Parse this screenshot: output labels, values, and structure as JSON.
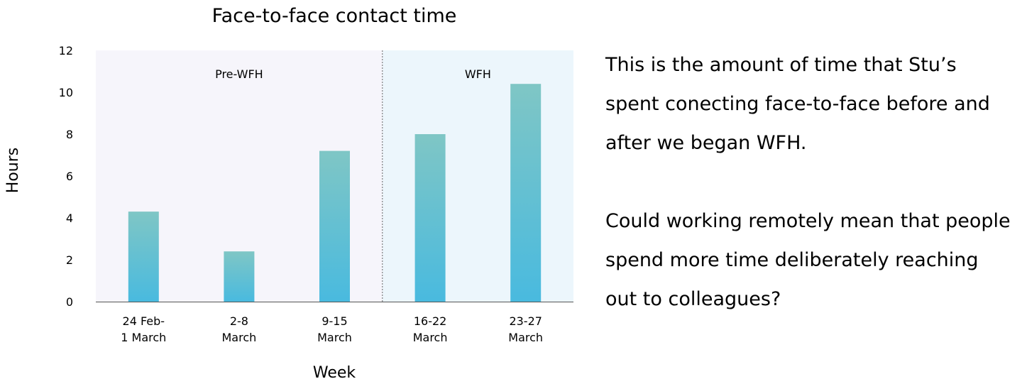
{
  "chart_data": {
    "type": "bar",
    "title": "Face-to-face contact time",
    "xlabel": "Week",
    "ylabel": "Hours",
    "ylim": [
      0,
      12
    ],
    "yticks": [
      0,
      2,
      4,
      6,
      8,
      10,
      12
    ],
    "grid": false,
    "categories": [
      [
        "24 Feb-",
        "1 March"
      ],
      [
        "2-8",
        "March"
      ],
      [
        "9-15",
        "March"
      ],
      [
        "16-22",
        "March"
      ],
      [
        "23-27",
        "March"
      ]
    ],
    "values": [
      4.3,
      2.4,
      7.2,
      8.0,
      10.4
    ],
    "regions": [
      {
        "label": "Pre-WFH",
        "from_index": 0,
        "to_index": 2,
        "color": "#f6f5fb"
      },
      {
        "label": "WFH",
        "from_index": 3,
        "to_index": 4,
        "color": "#ecf6fc"
      }
    ],
    "bar_gradient": {
      "top": "#7fc6c5",
      "bottom": "#49badf"
    }
  },
  "description": {
    "paragraph1": "This is the amount of time that Stu’s spent conecting face-to-face before and after we began WFH.",
    "paragraph2": "Could working remotely mean that people spend more time deliberately reaching out to colleagues?"
  }
}
